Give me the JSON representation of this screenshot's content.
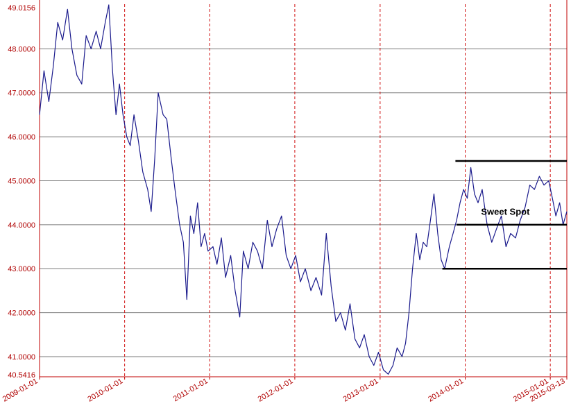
{
  "chart_data": {
    "type": "line",
    "title": "",
    "xlabel": "",
    "ylabel": "",
    "ylim": [
      40.5416,
      49.0156
    ],
    "xlim": [
      "2009-01-01",
      "2015-03-13"
    ],
    "grid": true,
    "y_ticks": [
      "40.5416",
      "41.0000",
      "42.0000",
      "43.0000",
      "44.0000",
      "45.0000",
      "46.0000",
      "47.0000",
      "48.0000",
      "49.0156"
    ],
    "x_ticks": [
      "2009-01-01",
      "2010-01-01",
      "2011-01-01",
      "2012-01-01",
      "2013-01-01",
      "2014-01-01",
      "2015-01-01",
      "2015-03-13"
    ],
    "series": [
      {
        "color": "#1a1a8c",
        "points": [
          [
            "2009-01-01",
            46.5
          ],
          [
            "2009-01-20",
            47.5
          ],
          [
            "2009-02-10",
            46.8
          ],
          [
            "2009-03-01",
            47.6
          ],
          [
            "2009-03-20",
            48.6
          ],
          [
            "2009-04-10",
            48.2
          ],
          [
            "2009-05-01",
            48.9
          ],
          [
            "2009-05-20",
            48.0
          ],
          [
            "2009-06-10",
            47.4
          ],
          [
            "2009-07-01",
            47.2
          ],
          [
            "2009-07-20",
            48.3
          ],
          [
            "2009-08-10",
            48.0
          ],
          [
            "2009-09-01",
            48.4
          ],
          [
            "2009-09-20",
            48.0
          ],
          [
            "2009-10-10",
            48.6
          ],
          [
            "2009-10-25",
            49.0
          ],
          [
            "2009-11-10",
            47.5
          ],
          [
            "2009-11-25",
            46.5
          ],
          [
            "2009-12-10",
            47.2
          ],
          [
            "2009-12-25",
            46.5
          ],
          [
            "2010-01-10",
            46.0
          ],
          [
            "2010-01-25",
            45.8
          ],
          [
            "2010-02-10",
            46.5
          ],
          [
            "2010-03-01",
            45.9
          ],
          [
            "2010-03-20",
            45.2
          ],
          [
            "2010-04-10",
            44.8
          ],
          [
            "2010-04-25",
            44.3
          ],
          [
            "2010-05-10",
            45.5
          ],
          [
            "2010-05-25",
            47.0
          ],
          [
            "2010-06-15",
            46.5
          ],
          [
            "2010-07-01",
            46.4
          ],
          [
            "2010-07-20",
            45.5
          ],
          [
            "2010-08-05",
            44.8
          ],
          [
            "2010-08-25",
            44.0
          ],
          [
            "2010-09-10",
            43.6
          ],
          [
            "2010-09-25",
            42.3
          ],
          [
            "2010-10-10",
            44.2
          ],
          [
            "2010-10-25",
            43.8
          ],
          [
            "2010-11-10",
            44.5
          ],
          [
            "2010-11-25",
            43.5
          ],
          [
            "2010-12-10",
            43.8
          ],
          [
            "2010-12-25",
            43.4
          ],
          [
            "2011-01-15",
            43.5
          ],
          [
            "2011-02-01",
            43.1
          ],
          [
            "2011-02-20",
            43.7
          ],
          [
            "2011-03-10",
            42.8
          ],
          [
            "2011-04-01",
            43.3
          ],
          [
            "2011-04-20",
            42.5
          ],
          [
            "2011-05-10",
            41.9
          ],
          [
            "2011-05-25",
            43.4
          ],
          [
            "2011-06-15",
            43.0
          ],
          [
            "2011-07-05",
            43.6
          ],
          [
            "2011-07-25",
            43.4
          ],
          [
            "2011-08-15",
            43.0
          ],
          [
            "2011-09-05",
            44.1
          ],
          [
            "2011-09-25",
            43.5
          ],
          [
            "2011-10-15",
            43.9
          ],
          [
            "2011-11-05",
            44.2
          ],
          [
            "2011-11-25",
            43.3
          ],
          [
            "2011-12-15",
            43.0
          ],
          [
            "2012-01-05",
            43.3
          ],
          [
            "2012-01-25",
            42.7
          ],
          [
            "2012-02-15",
            43.0
          ],
          [
            "2012-03-10",
            42.5
          ],
          [
            "2012-04-01",
            42.8
          ],
          [
            "2012-04-25",
            42.4
          ],
          [
            "2012-05-15",
            43.8
          ],
          [
            "2012-06-05",
            42.6
          ],
          [
            "2012-06-25",
            41.8
          ],
          [
            "2012-07-15",
            42.0
          ],
          [
            "2012-08-05",
            41.6
          ],
          [
            "2012-08-25",
            42.2
          ],
          [
            "2012-09-15",
            41.4
          ],
          [
            "2012-10-05",
            41.2
          ],
          [
            "2012-10-25",
            41.5
          ],
          [
            "2012-11-15",
            41.0
          ],
          [
            "2012-12-05",
            40.8
          ],
          [
            "2012-12-25",
            41.1
          ],
          [
            "2013-01-15",
            40.7
          ],
          [
            "2013-02-05",
            40.6
          ],
          [
            "2013-02-25",
            40.8
          ],
          [
            "2013-03-15",
            41.2
          ],
          [
            "2013-04-05",
            41.0
          ],
          [
            "2013-04-20",
            41.3
          ],
          [
            "2013-05-05",
            42.0
          ],
          [
            "2013-05-20",
            43.0
          ],
          [
            "2013-06-05",
            43.8
          ],
          [
            "2013-06-20",
            43.2
          ],
          [
            "2013-07-05",
            43.6
          ],
          [
            "2013-07-20",
            43.5
          ],
          [
            "2013-08-05",
            44.1
          ],
          [
            "2013-08-20",
            44.7
          ],
          [
            "2013-09-05",
            43.8
          ],
          [
            "2013-09-20",
            43.2
          ],
          [
            "2013-10-05",
            43.0
          ],
          [
            "2013-10-25",
            43.5
          ],
          [
            "2013-11-10",
            43.8
          ],
          [
            "2013-11-25",
            44.1
          ],
          [
            "2013-12-10",
            44.5
          ],
          [
            "2013-12-25",
            44.8
          ],
          [
            "2014-01-10",
            44.6
          ],
          [
            "2014-01-25",
            45.3
          ],
          [
            "2014-02-10",
            44.7
          ],
          [
            "2014-02-25",
            44.5
          ],
          [
            "2014-03-15",
            44.8
          ],
          [
            "2014-04-05",
            44.0
          ],
          [
            "2014-04-25",
            43.6
          ],
          [
            "2014-05-15",
            43.9
          ],
          [
            "2014-06-05",
            44.2
          ],
          [
            "2014-06-25",
            43.5
          ],
          [
            "2014-07-15",
            43.8
          ],
          [
            "2014-08-05",
            43.7
          ],
          [
            "2014-08-25",
            44.1
          ],
          [
            "2014-09-15",
            44.4
          ],
          [
            "2014-10-05",
            44.9
          ],
          [
            "2014-10-25",
            44.8
          ],
          [
            "2014-11-15",
            45.1
          ],
          [
            "2014-12-05",
            44.9
          ],
          [
            "2014-12-25",
            45.0
          ],
          [
            "2015-01-10",
            44.6
          ],
          [
            "2015-01-25",
            44.2
          ],
          [
            "2015-02-10",
            44.5
          ],
          [
            "2015-02-25",
            44.0
          ],
          [
            "2015-03-13",
            44.3
          ]
        ]
      }
    ],
    "annotations": [
      {
        "type": "hline",
        "y": 45.45,
        "x_start": "2013-11-20",
        "x_end": "2015-03-13",
        "color": "#000000"
      },
      {
        "type": "hline",
        "y": 44.0,
        "x_start": "2013-11-25",
        "x_end": "2015-03-13",
        "color": "#000000"
      },
      {
        "type": "hline",
        "y": 43.0,
        "x_start": "2013-09-25",
        "x_end": "2015-03-13",
        "color": "#000000"
      },
      {
        "type": "text",
        "text": "Sweet Spot",
        "x": "2014-03-10",
        "y": 44.23
      }
    ]
  }
}
